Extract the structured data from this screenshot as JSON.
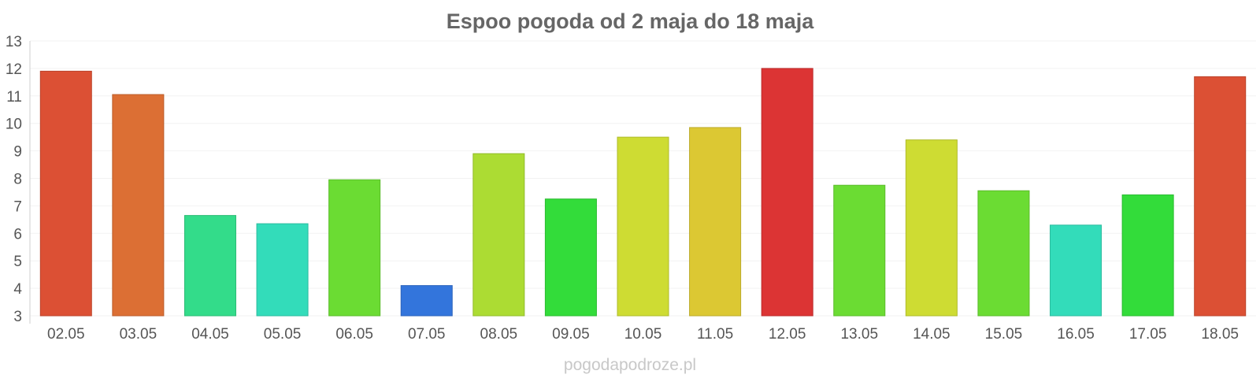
{
  "chart_data": {
    "type": "bar",
    "title": "Espoo pogoda od 2 maja do 18 maja",
    "xlabel": "",
    "ylabel": "",
    "ylim": [
      3,
      13
    ],
    "yticks": [
      3,
      4,
      5,
      6,
      7,
      8,
      9,
      10,
      11,
      12,
      13
    ],
    "grid": true,
    "legend": "none",
    "categories": [
      "02.05",
      "03.05",
      "04.05",
      "05.05",
      "06.05",
      "07.05",
      "08.05",
      "09.05",
      "10.05",
      "11.05",
      "12.05",
      "13.05",
      "14.05",
      "15.05",
      "16.05",
      "17.05",
      "18.05"
    ],
    "values": [
      11.9,
      11.05,
      6.65,
      6.35,
      7.95,
      4.1,
      8.9,
      7.25,
      9.5,
      9.85,
      12.0,
      7.75,
      9.4,
      7.55,
      6.3,
      7.4,
      11.7
    ],
    "colors": [
      "#dc5034",
      "#dc6f34",
      "#33dc8a",
      "#33dcba",
      "#6bdc33",
      "#3375dc",
      "#acdc33",
      "#33dc3a",
      "#cedc33",
      "#dcc833",
      "#dc3434",
      "#6bdc33",
      "#cedc33",
      "#6bdc33",
      "#33dcba",
      "#33dc3a",
      "#dc5034"
    ]
  },
  "footer": {
    "watermark": "pogodapodroze.pl"
  }
}
